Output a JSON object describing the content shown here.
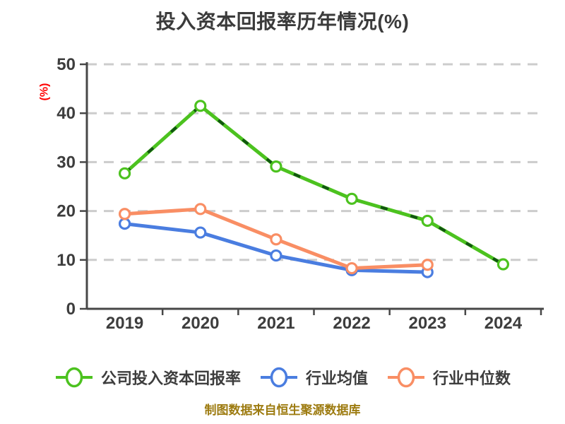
{
  "title": "投入资本回报率历年情况(%)",
  "caption": "制图数据来自恒生聚源数据库",
  "colors": {
    "title": "#3b3b3b",
    "axis_line": "#474747",
    "tick_label": "#3d3d3d",
    "grid_line": "#cccccc",
    "y_unit_label": "#ff0000",
    "caption": "#9d7b10",
    "marker_fill": "#ffffff",
    "company_line": "#4cc21f",
    "company_dash_overlay": "#115511",
    "industry_avg_line": "#4a7de0",
    "industry_median_line": "#f98e64"
  },
  "chart_data": {
    "type": "line",
    "title": "投入资本回报率历年情况(%)",
    "x": [
      "2019",
      "2020",
      "2021",
      "2022",
      "2023",
      "2024"
    ],
    "series": [
      {
        "name": "公司投入资本回报率",
        "color": "#4cc21f",
        "values": [
          27.7,
          41.5,
          29.1,
          22.5,
          18.0,
          9.1
        ]
      },
      {
        "name": "行业均值",
        "color": "#4a7de0",
        "values": [
          17.4,
          15.6,
          10.9,
          7.9,
          7.5,
          null
        ]
      },
      {
        "name": "行业中位数",
        "color": "#f98e64",
        "values": [
          19.4,
          20.4,
          14.2,
          8.3,
          9.0,
          null
        ]
      }
    ],
    "ylabel": "(%)",
    "ylim": [
      0,
      50
    ],
    "yticks": [
      0,
      10,
      20,
      30,
      40,
      50
    ],
    "grid": "horizontal-dashed",
    "legend_position": "bottom",
    "marker_style": "open-circle-white-fill"
  }
}
